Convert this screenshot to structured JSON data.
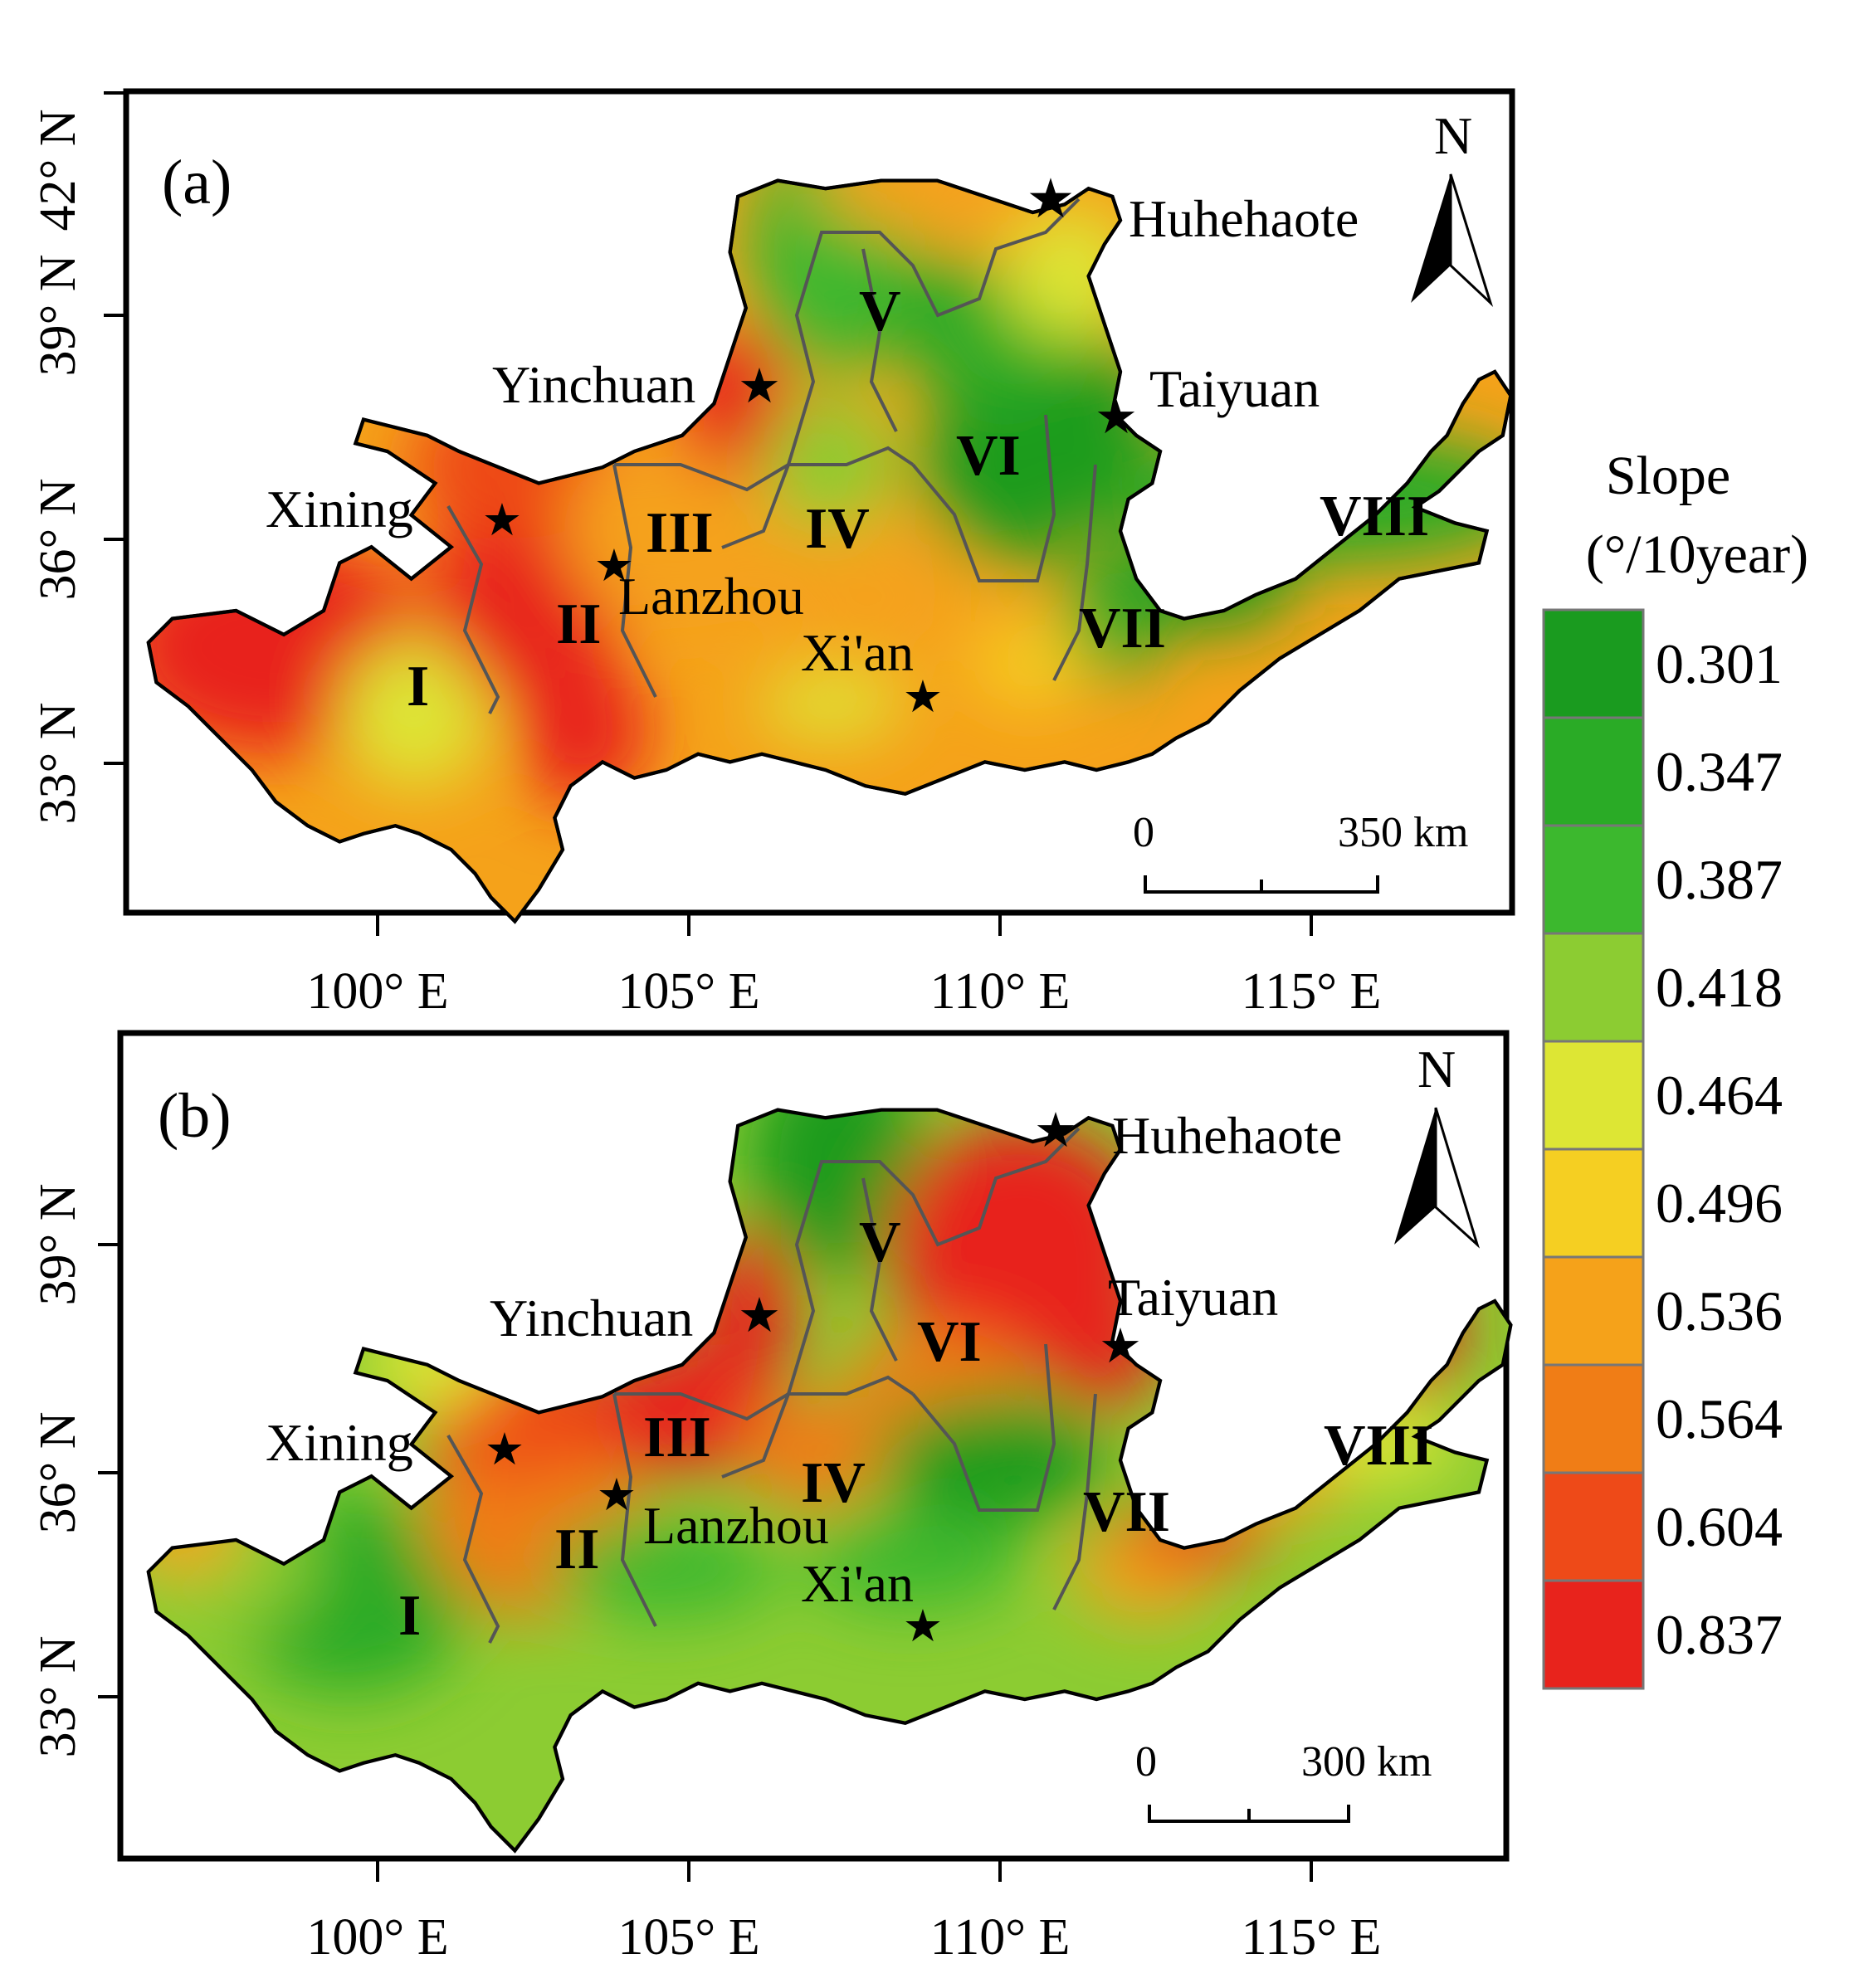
{
  "colors": {
    "green_dark": "#1a9b1f",
    "green": "#3cb82e",
    "green_light": "#7cc832",
    "yellow_green": "#b8d832",
    "yellow": "#e0e634",
    "gold": "#f5cf22",
    "orange": "#f5a21a",
    "orange_dark": "#f07d16",
    "red_orange": "#ee4a18",
    "red": "#e8231c",
    "boundary": "#555555"
  },
  "panels": [
    {
      "label": "(a)",
      "north": "N",
      "scale_bar": {
        "start": "0",
        "end": "350 km"
      },
      "lat_ticks": [
        "42° N",
        "39° N",
        "36° N",
        "33° N"
      ],
      "lon_ticks": [
        "100° E",
        "105° E",
        "110° E",
        "115° E"
      ],
      "cities": [
        "Huhehaote",
        "Taiyuan",
        "Yinchuan",
        "Xining",
        "Lanzhou",
        "Xi'an"
      ],
      "regions": [
        "I",
        "II",
        "III",
        "IV",
        "V",
        "VI",
        "VII",
        "VIII"
      ]
    },
    {
      "label": "(b)",
      "north": "N",
      "scale_bar": {
        "start": "0",
        "end": "300 km"
      },
      "lat_ticks": [
        "39° N",
        "36° N",
        "33° N"
      ],
      "lon_ticks": [
        "100° E",
        "105° E",
        "110° E",
        "115° E"
      ],
      "cities": [
        "Huhehaote",
        "Taiyuan",
        "Yinchuan",
        "Xining",
        "Lanzhou",
        "Xi'an"
      ],
      "regions": [
        "I",
        "II",
        "III",
        "IV",
        "V",
        "VI",
        "VII",
        "VIII"
      ]
    }
  ],
  "legend": {
    "title_line1": "Slope",
    "title_line2": "(°/10year)",
    "items": [
      {
        "value": "0.301",
        "color": "#1a9b1f"
      },
      {
        "value": "0.347",
        "color": "#2aab26"
      },
      {
        "value": "0.387",
        "color": "#3cb82e"
      },
      {
        "value": "0.418",
        "color": "#8ccc32"
      },
      {
        "value": "0.464",
        "color": "#dde634"
      },
      {
        "value": "0.496",
        "color": "#f5cf22"
      },
      {
        "value": "0.536",
        "color": "#f5a21a"
      },
      {
        "value": "0.564",
        "color": "#f07d16"
      },
      {
        "value": "0.604",
        "color": "#ee4a18"
      },
      {
        "value": "0.837",
        "color": "#e8231c"
      }
    ]
  }
}
